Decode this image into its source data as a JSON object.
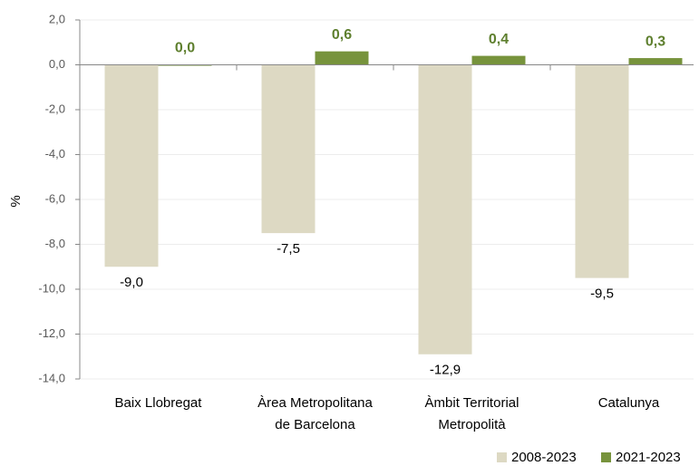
{
  "chart_data": {
    "type": "bar",
    "y_label": "%",
    "categories": [
      [
        "Baix Llobregat"
      ],
      [
        "Àrea Metropolitana",
        "de Barcelona"
      ],
      [
        "Àmbit Territorial",
        "Metropolità"
      ],
      [
        "Catalunya"
      ]
    ],
    "series": [
      {
        "name": "2008-2023",
        "color": "#ddd9c3",
        "values": [
          -9.0,
          -7.5,
          -12.9,
          -9.5
        ],
        "value_labels": [
          "-9,0",
          "-7,5",
          "-12,9",
          "-9,5"
        ]
      },
      {
        "name": "2021-2023",
        "color": "#77933c",
        "values": [
          0.0,
          0.6,
          0.4,
          0.3
        ],
        "value_labels": [
          "0,0",
          "0,6",
          "0,4",
          "0,3"
        ]
      }
    ],
    "ylim": [
      -14,
      2
    ],
    "yticks": [
      {
        "value": 2,
        "label": "2,0"
      },
      {
        "value": 0,
        "label": "0,0"
      },
      {
        "value": -2,
        "label": "-2,0"
      },
      {
        "value": -4,
        "label": "-4,0"
      },
      {
        "value": -6,
        "label": "-6,0"
      },
      {
        "value": -8,
        "label": "-8,0"
      },
      {
        "value": -10,
        "label": "-10,0"
      },
      {
        "value": -12,
        "label": "-12,0"
      },
      {
        "value": -14,
        "label": "-14,0"
      }
    ],
    "grid": true,
    "legend": "bottom-right"
  }
}
